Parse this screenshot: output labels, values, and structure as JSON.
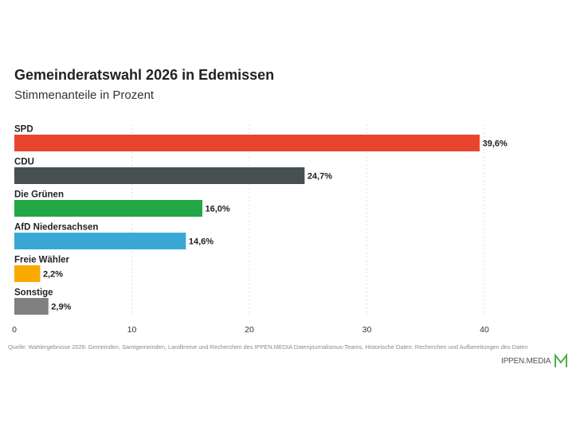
{
  "title": "Gemeinderatswahl 2026 in Edemissen",
  "subtitle": "Stimmenanteile in Prozent",
  "source": "Quelle: Wahlergebnisse 2026: Gemeinden, Samtgemeinden, Landkreise und Recherchen des IPPEN.MEDIA Datenjournalismus-Teams. Historische Daten: Recherchen und Aufbereitungen des Daten",
  "brand": {
    "name": "IPPEN.MEDIA",
    "logo_icon": "ippen-media-m-logo",
    "logo_color": "#4caf50"
  },
  "chart_data": {
    "type": "bar",
    "orientation": "horizontal",
    "title": "Gemeinderatswahl 2026 in Edemissen",
    "subtitle": "Stimmenanteile in Prozent",
    "categories": [
      "SPD",
      "CDU",
      "Die Grünen",
      "AfD Niedersachsen",
      "Freie Wähler",
      "Sonstige"
    ],
    "values": [
      39.6,
      24.7,
      16.0,
      14.6,
      2.2,
      2.9
    ],
    "value_labels": [
      "39,6%",
      "24,7%",
      "16,0%",
      "14,6%",
      "2,2%",
      "2,9%"
    ],
    "colors": [
      "#e8452c",
      "#465050",
      "#22a745",
      "#3aa8d4",
      "#f9aa00",
      "#808080"
    ],
    "xlim": [
      0,
      40
    ],
    "xticks": [
      0,
      10,
      20,
      30,
      40
    ],
    "xtick_labels": [
      "0",
      "10",
      "20",
      "30",
      "40"
    ],
    "grid": true,
    "legend": "none"
  }
}
